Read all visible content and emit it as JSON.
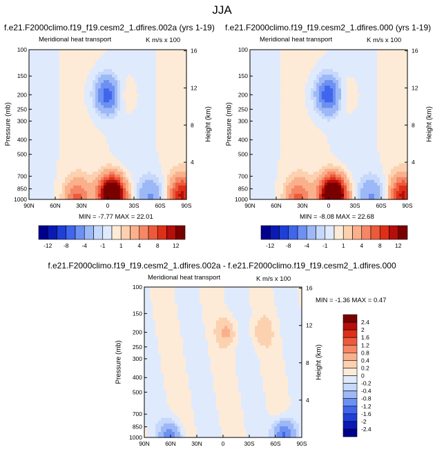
{
  "figure": {
    "title": "JJA"
  },
  "colors": {
    "lvl_neg12": "#00008e",
    "lvl_neg10": "#0a1ab4",
    "lvl_neg8": "#1f3fd6",
    "lvl_neg6": "#3f66ec",
    "lvl_neg4": "#6d90f2",
    "lvl_neg2": "#9db8f6",
    "lvl_neg1": "#c6d8fb",
    "lvl_neg05": "#dfeafd",
    "lvl_pos05": "#fdebd8",
    "lvl_pos1": "#fcd1b0",
    "lvl_pos2": "#fab08b",
    "lvl_pos4": "#f58766",
    "lvl_pos6": "#ed5a3b",
    "lvl_pos8": "#de3018",
    "lvl_pos10": "#b50e0b",
    "lvl_pos12": "#7a0000"
  },
  "chart_data": [
    {
      "type": "heatmap",
      "title": "f.e21.F2000climo.f19_f19.cesm2_1.dfires.002a (yrs 1-19)",
      "left_label": "Meridional heat transport",
      "right_label": "K m/s x 100",
      "xlabel": "",
      "ylabel": "Pressure (mb)",
      "y2label": "Height (km)",
      "x_ticks": [
        "90N",
        "60N",
        "30N",
        "0",
        "30S",
        "60S",
        "90S"
      ],
      "y_ticks": [
        "100",
        "150",
        "200",
        "250",
        "300",
        "400",
        "500",
        "700",
        "850",
        "1000"
      ],
      "y2_ticks": [
        "16",
        "12",
        "8",
        "4"
      ],
      "ylim": [
        1000,
        100
      ],
      "stats": {
        "min_label": "MIN =",
        "min": "-7.77",
        "max_label": "MAX =",
        "max": "22.01"
      },
      "colorbar_labels": [
        "-12",
        "-8",
        "-4",
        "-1",
        "1",
        "4",
        "8",
        "12"
      ],
      "features": [
        {
          "lat": 0,
          "p": 200,
          "value": -7.5
        },
        {
          "lat": -15,
          "p": 200,
          "value": 1.5
        },
        {
          "lat": -5,
          "p": 950,
          "value": 22
        },
        {
          "lat": 35,
          "p": 980,
          "value": 6
        },
        {
          "lat": -50,
          "p": 950,
          "value": -4
        },
        {
          "lat": -85,
          "p": 940,
          "value": 10
        }
      ]
    },
    {
      "type": "heatmap",
      "title": "f.e21.F2000climo.f19_f19.cesm2_1.dfires.000 (yrs 1-19)",
      "left_label": "Meridional heat transport",
      "right_label": "K m/s x 100",
      "xlabel": "",
      "ylabel": "Pressure (mb)",
      "y2label": "Height (km)",
      "x_ticks": [
        "90N",
        "60N",
        "30N",
        "0",
        "30S",
        "60S",
        "90S"
      ],
      "y_ticks": [
        "100",
        "150",
        "200",
        "250",
        "300",
        "400",
        "500",
        "700",
        "850",
        "1000"
      ],
      "y2_ticks": [
        "16",
        "12",
        "8",
        "4"
      ],
      "ylim": [
        1000,
        100
      ],
      "stats": {
        "min_label": "MIN =",
        "min": "-8.08",
        "max_label": "MAX =",
        "max": "22.68"
      },
      "colorbar_labels": [
        "-12",
        "-8",
        "-4",
        "-1",
        "1",
        "4",
        "8",
        "12"
      ],
      "features": [
        {
          "lat": 0,
          "p": 200,
          "value": -8
        },
        {
          "lat": -15,
          "p": 200,
          "value": 1.5
        },
        {
          "lat": -5,
          "p": 950,
          "value": 22.7
        },
        {
          "lat": 35,
          "p": 980,
          "value": 6
        },
        {
          "lat": -50,
          "p": 950,
          "value": -4
        },
        {
          "lat": -85,
          "p": 940,
          "value": 10
        }
      ]
    },
    {
      "type": "heatmap",
      "title": "f.e21.F2000climo.f19_f19.cesm2_1.dfires.002a - f.e21.F2000climo.f19_f19.cesm2_1.dfires.000",
      "left_label": "Meridional heat transport",
      "right_label": "K m/s x 100",
      "xlabel": "",
      "ylabel": "Pressure (mb)",
      "y2label": "Height (km)",
      "x_ticks": [
        "90N",
        "60N",
        "30N",
        "0",
        "30S",
        "60S",
        "90S"
      ],
      "y_ticks": [
        "100",
        "150",
        "200",
        "250",
        "300",
        "400",
        "500",
        "700",
        "850",
        "1000"
      ],
      "y2_ticks": [
        "16",
        "12",
        "8",
        "4"
      ],
      "ylim": [
        1000,
        100
      ],
      "stats": {
        "min_label": "MIN =",
        "min": "-1.36",
        "max_label": "MAX =",
        "max": "0.47"
      },
      "colorbar_labels": [
        "2.4",
        "2",
        "1.6",
        "1.2",
        "0.8",
        "0.4",
        "0.2",
        "0",
        "-0.2",
        "-0.4",
        "-0.8",
        "-1.2",
        "-1.6",
        "-2",
        "-2.4"
      ],
      "features": [
        {
          "lat": -5,
          "p": 200,
          "value": 0.4
        },
        {
          "lat": -45,
          "p": 200,
          "value": 0.3
        },
        {
          "lat": 60,
          "p": 990,
          "value": -1.0
        },
        {
          "lat": -70,
          "p": 960,
          "value": -1.36
        }
      ]
    }
  ]
}
